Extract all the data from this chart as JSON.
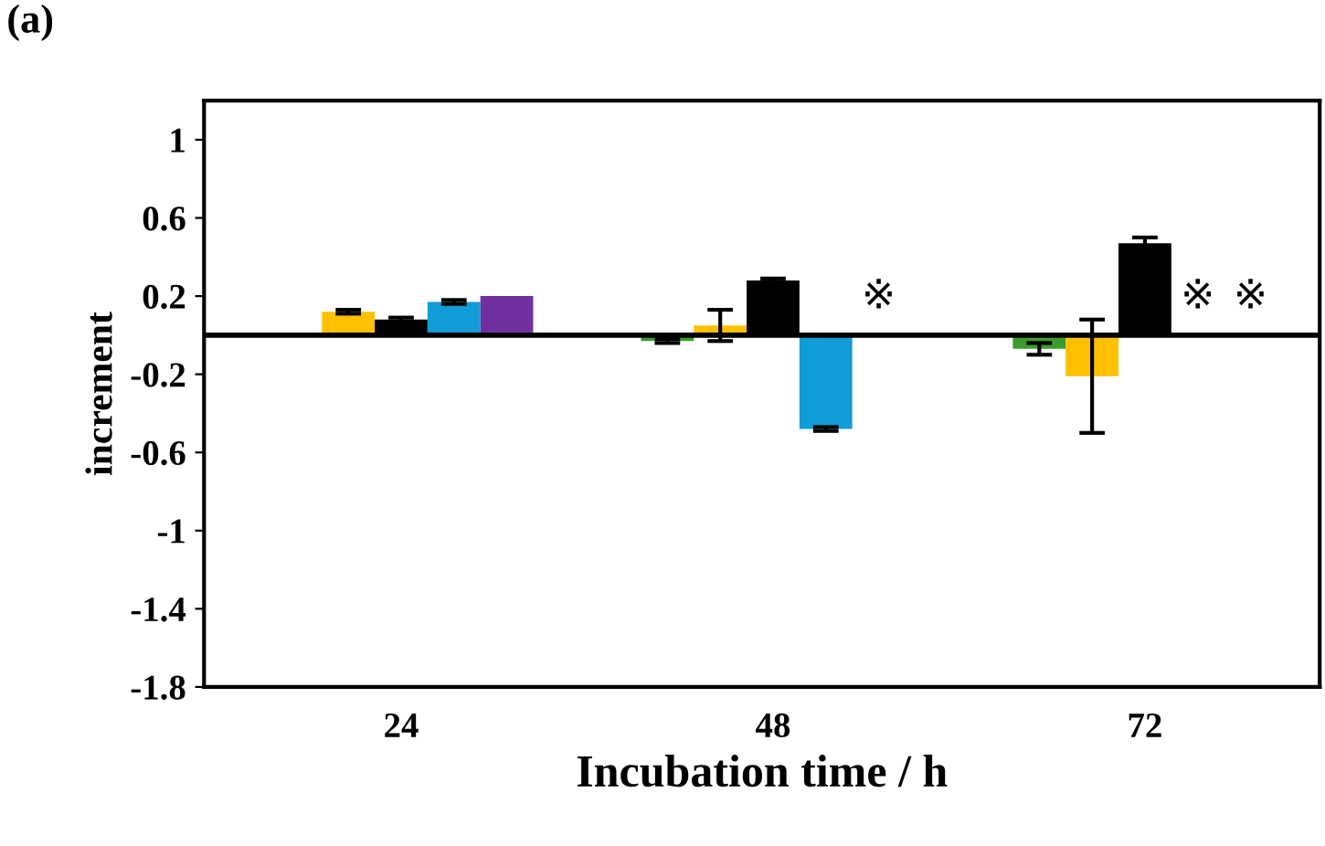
{
  "chart_data": {
    "type": "bar",
    "xlabel": "Incubation time / h",
    "ylabel": "increment",
    "categories": [
      "24",
      "48",
      "72"
    ],
    "series": [
      {
        "color": "#3d9a2f",
        "values": [
          null,
          -0.03,
          -0.07
        ],
        "errors": [
          null,
          0.01,
          0.03
        ]
      },
      {
        "color": "#ffc000",
        "values": [
          0.12,
          0.05,
          -0.21
        ],
        "errors": [
          0.01,
          0.08,
          0.29
        ]
      },
      {
        "color": "#000000",
        "values": [
          0.08,
          0.28,
          0.47
        ],
        "errors": [
          0.01,
          0.01,
          0.03
        ]
      },
      {
        "color": "#119dd8",
        "values": [
          0.17,
          -0.48,
          null
        ],
        "errors": [
          0.01,
          0.01,
          null
        ]
      },
      {
        "color": "#7030a0",
        "values": [
          0.2,
          null,
          null
        ],
        "errors": [
          null,
          null,
          null
        ]
      }
    ],
    "ylim": [
      -1.8,
      1.2
    ],
    "yticks": [
      1,
      0.6,
      0.2,
      -0.2,
      -0.6,
      -1,
      -1.4,
      -1.8
    ],
    "ref_lines": [
      {
        "axis": "y",
        "value": 0,
        "color": "#000000"
      }
    ],
    "grid": false,
    "legend": false,
    "annotations": [
      "(a)",
      "※",
      "※",
      "※"
    ]
  }
}
